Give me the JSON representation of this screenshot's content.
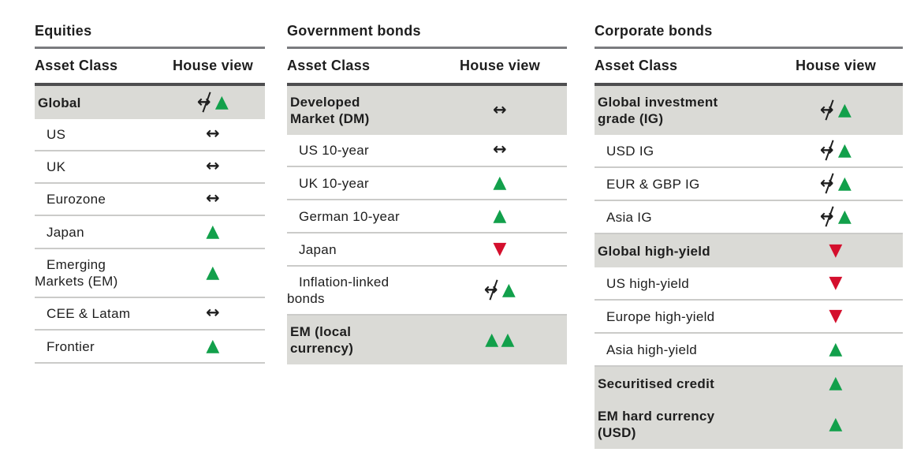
{
  "colors": {
    "positive_green": "#12A04B",
    "negative_red": "#D40F2D",
    "neutral_black": "#1E1E1E",
    "highlight_row_bg": "#DADAD6"
  },
  "glyphs": {
    "up": "▲",
    "down": "▼",
    "neutral": "↔"
  },
  "tables": [
    {
      "id": "equities",
      "title": "Equities",
      "col_asset": "Asset Class",
      "col_view": "House view",
      "rows": [
        {
          "label": "Global",
          "highlight": true,
          "view": [
            "neutral-crossed",
            "up"
          ]
        },
        {
          "label": "US",
          "highlight": false,
          "view": [
            "neutral"
          ]
        },
        {
          "label": "UK",
          "highlight": false,
          "view": [
            "neutral"
          ]
        },
        {
          "label": "Eurozone",
          "highlight": false,
          "view": [
            "neutral"
          ]
        },
        {
          "label": "Japan",
          "highlight": false,
          "view": [
            "up"
          ]
        },
        {
          "label": "Emerging\nMarkets (EM)",
          "highlight": false,
          "view": [
            "up"
          ]
        },
        {
          "label": "CEE & Latam",
          "highlight": false,
          "view": [
            "neutral"
          ]
        },
        {
          "label": "Frontier",
          "highlight": false,
          "view": [
            "up"
          ]
        }
      ]
    },
    {
      "id": "government-bonds",
      "title": "Government bonds",
      "col_asset": "Asset Class",
      "col_view": "House view",
      "rows": [
        {
          "label": "Developed\nMarket (DM)",
          "highlight": true,
          "view": [
            "neutral"
          ]
        },
        {
          "label": "US 10-year",
          "highlight": false,
          "view": [
            "neutral"
          ]
        },
        {
          "label": "UK 10-year",
          "highlight": false,
          "view": [
            "up"
          ]
        },
        {
          "label": "German 10-year",
          "highlight": false,
          "view": [
            "up"
          ]
        },
        {
          "label": "Japan",
          "highlight": false,
          "view": [
            "down"
          ]
        },
        {
          "label": "Inflation-linked\nbonds",
          "highlight": false,
          "view": [
            "neutral-crossed",
            "up"
          ]
        },
        {
          "label": "EM (local\ncurrency)",
          "highlight": true,
          "view": [
            "up",
            "up"
          ]
        }
      ]
    },
    {
      "id": "corporate-bonds",
      "title": "Corporate bonds",
      "col_asset": "Asset Class",
      "col_view": "House view",
      "rows": [
        {
          "label": "Global investment\ngrade (IG)",
          "highlight": true,
          "view": [
            "neutral-crossed",
            "up"
          ]
        },
        {
          "label": "USD IG",
          "highlight": false,
          "view": [
            "neutral-crossed",
            "up"
          ]
        },
        {
          "label": "EUR & GBP IG",
          "highlight": false,
          "view": [
            "neutral-crossed",
            "up"
          ]
        },
        {
          "label": "Asia IG",
          "highlight": false,
          "view": [
            "neutral-crossed",
            "up"
          ]
        },
        {
          "label": "Global high-yield",
          "highlight": true,
          "view": [
            "down"
          ]
        },
        {
          "label": "US high-yield",
          "highlight": false,
          "view": [
            "down"
          ]
        },
        {
          "label": "Europe high-yield",
          "highlight": false,
          "view": [
            "down"
          ]
        },
        {
          "label": "Asia high-yield",
          "highlight": false,
          "view": [
            "up"
          ]
        },
        {
          "label": "Securitised credit",
          "highlight": true,
          "view": [
            "up"
          ]
        },
        {
          "label": "EM hard currency\n(USD)",
          "highlight": true,
          "view": [
            "up"
          ]
        }
      ]
    }
  ]
}
